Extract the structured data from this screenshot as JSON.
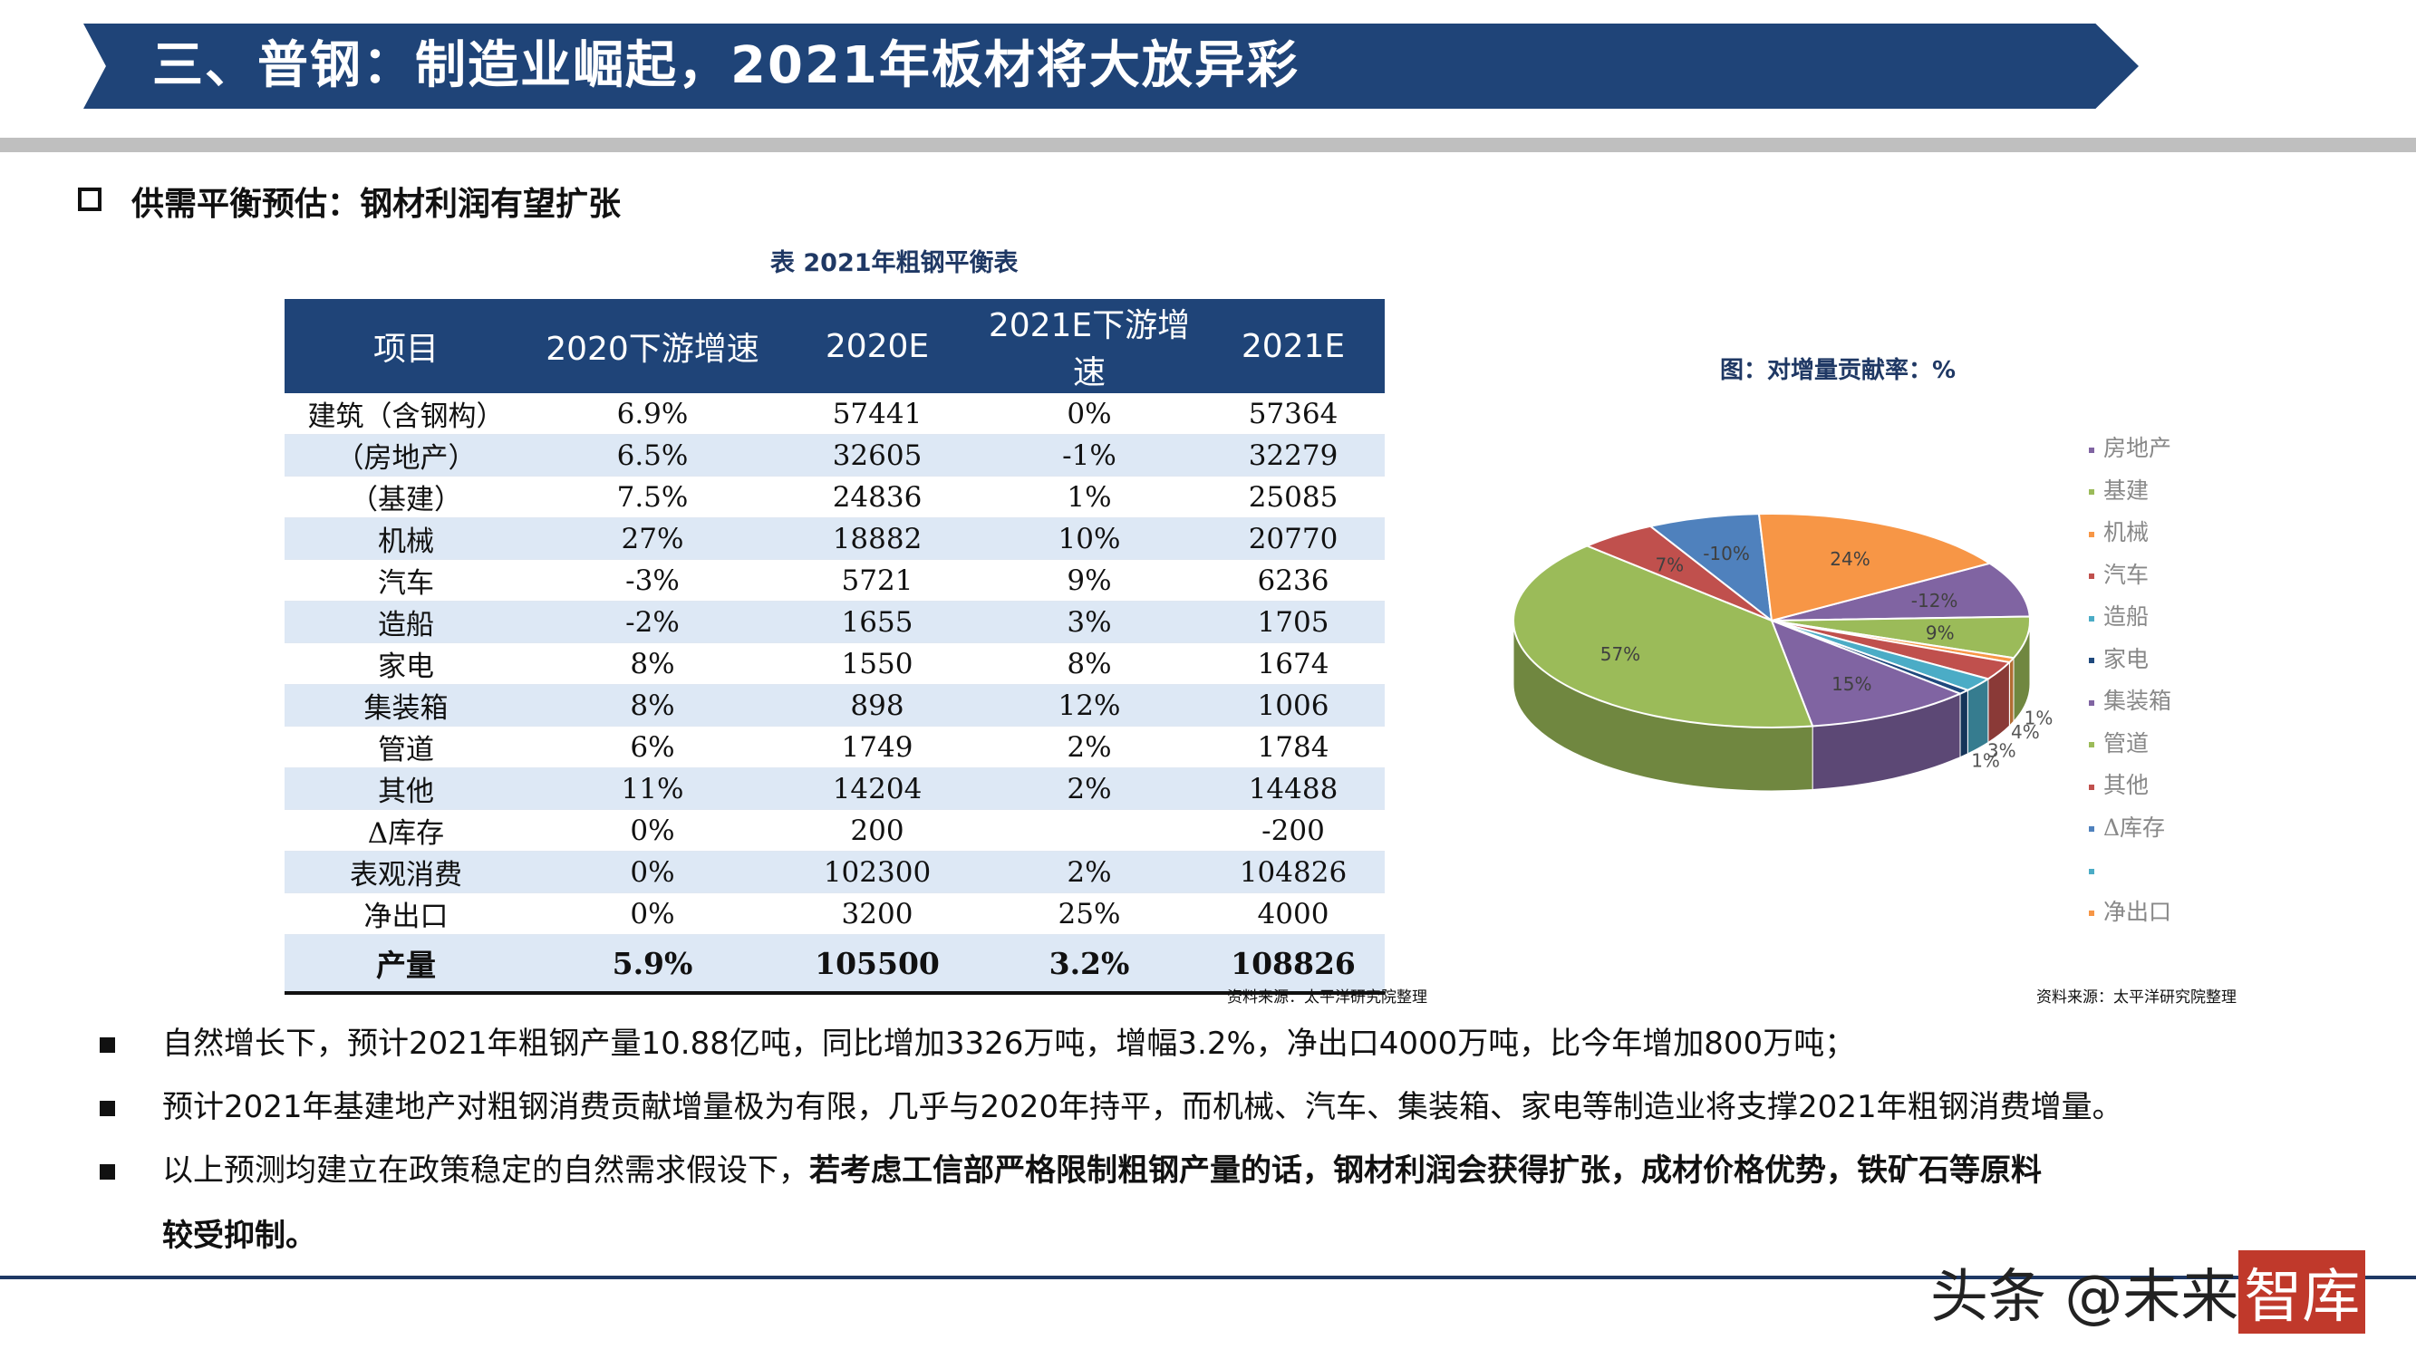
{
  "header": {
    "title": "三、普钢：制造业崛起，2021年板材将大放异彩"
  },
  "subtitle": "供需平衡预估：钢材利润有望扩张",
  "table": {
    "title": "表  2021年粗钢平衡表",
    "columns": [
      "项目",
      "2020下游增速",
      "2020E",
      "2021E下游增速",
      "2021E"
    ],
    "rows": [
      [
        "建筑（含钢构）",
        "6.9%",
        "57441",
        "0%",
        "57364"
      ],
      [
        "（房地产）",
        "6.5%",
        "32605",
        "-1%",
        "32279"
      ],
      [
        "（基建）",
        "7.5%",
        "24836",
        "1%",
        "25085"
      ],
      [
        "机械",
        "27%",
        "18882",
        "10%",
        "20770"
      ],
      [
        "汽车",
        "-3%",
        "5721",
        "9%",
        "6236"
      ],
      [
        "造船",
        "-2%",
        "1655",
        "3%",
        "1705"
      ],
      [
        "家电",
        "8%",
        "1550",
        "8%",
        "1674"
      ],
      [
        "集装箱",
        "8%",
        "898",
        "12%",
        "1006"
      ],
      [
        "管道",
        "6%",
        "1749",
        "2%",
        "1784"
      ],
      [
        "其他",
        "11%",
        "14204",
        "2%",
        "14488"
      ],
      [
        "Δ库存",
        "0%",
        "200",
        "",
        "-200"
      ],
      [
        "表观消费",
        "0%",
        "102300",
        "2%",
        "104826"
      ],
      [
        "净出口",
        "0%",
        "3200",
        "25%",
        "4000"
      ]
    ],
    "total": [
      "产量",
      "5.9%",
      "105500",
      "3.2%",
      "108826"
    ],
    "source": "资料来源：太平洋研究院整理"
  },
  "chart": {
    "title": "图：对增量贡献率：%",
    "source": "资料来源：太平洋研究院整理"
  },
  "chart_data": {
    "type": "pie",
    "title": "图：对增量贡献率：%",
    "slices": [
      {
        "label": "房地产",
        "value": -12,
        "display": "-12%",
        "color": "#8064a2"
      },
      {
        "label": "基建",
        "value": 9,
        "display": "9%",
        "color": "#9bbb59"
      },
      {
        "label": "机械",
        "value": 1,
        "display": "1%",
        "color": "#f79646"
      },
      {
        "label": "汽车",
        "value": 4,
        "display": "4%",
        "color": "#c0504d"
      },
      {
        "label": "造船",
        "value": 3,
        "display": "3%",
        "color": "#4bacc6"
      },
      {
        "label": "家电",
        "value": 1,
        "display": "1%",
        "color": "#1f497d"
      },
      {
        "label": "集装箱",
        "value": 15,
        "display": "15%",
        "color": "#8064a2"
      },
      {
        "label": "管道",
        "value": 57,
        "display": "57%",
        "color": "#9bbb59"
      },
      {
        "label": "其他",
        "value": 7,
        "display": "7%",
        "color": "#c0504d"
      },
      {
        "label": "Δ库存",
        "value": -10,
        "display": "-10%",
        "color": "#4f81bd"
      },
      {
        "label": "",
        "value": 0,
        "display": "",
        "color": "#4bacc6"
      },
      {
        "label": "净出口",
        "value": 24,
        "display": "24%",
        "color": "#f79646"
      }
    ],
    "legend": [
      "房地产",
      "基建",
      "机械",
      "汽车",
      "造船",
      "家电",
      "集装箱",
      "管道",
      "其他",
      "Δ库存",
      "",
      "净出口"
    ],
    "legend_position": "right"
  },
  "bullets": [
    {
      "text": "自然增长下，预计2021年粗钢产量10.88亿吨，同比增加3326万吨，增幅3.2%，净出口4000万吨，比今年增加800万吨；"
    },
    {
      "text": "预计2021年基建地产对粗钢消费贡献增量极为有限，几乎与2020年持平，而机械、汽车、集装箱、家电等制造业将支撑2021年粗钢消费增量。"
    },
    {
      "normal": "以上预测均建立在政策稳定的自然需求假设下，",
      "bold": "若考虑工信部严格限制粗钢产量的话，钢材利润会获得扩张，成材价格优势，铁矿石等原料",
      "bold_cont": "较受抑制。"
    }
  ],
  "watermark": {
    "text": "头条 @未来",
    "logo": "智库"
  }
}
